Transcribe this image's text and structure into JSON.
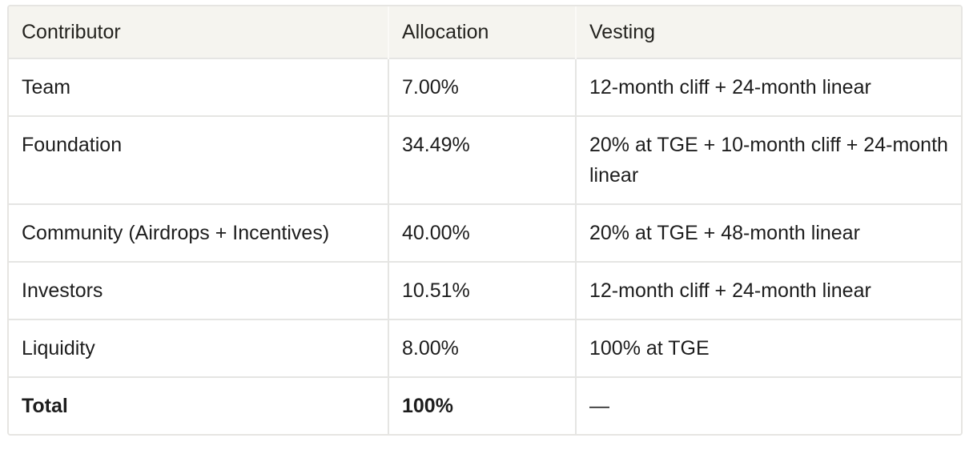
{
  "table": {
    "columns": [
      {
        "label": "Contributor"
      },
      {
        "label": "Allocation"
      },
      {
        "label": "Vesting"
      }
    ],
    "rows": [
      {
        "contributor": "Team",
        "allocation": "7.00%",
        "vesting": "12-month cliff + 24-month linear"
      },
      {
        "contributor": "Foundation",
        "allocation": "34.49%",
        "vesting": "20% at TGE + 10-month cliff + 24-month linear"
      },
      {
        "contributor": "Community (Airdrops + Incentives)",
        "allocation": "40.00%",
        "vesting": "20% at TGE + 48-month linear"
      },
      {
        "contributor": "Investors",
        "allocation": "10.51%",
        "vesting": "12-month cliff + 24-month linear"
      },
      {
        "contributor": "Liquidity",
        "allocation": "8.00%",
        "vesting": "100% at TGE"
      },
      {
        "contributor": "Total",
        "allocation": "100%",
        "vesting": "—"
      }
    ],
    "colors": {
      "header_bg": "#f5f4ef",
      "border": "#e5e5e3",
      "text": "#1d1d1d"
    }
  }
}
